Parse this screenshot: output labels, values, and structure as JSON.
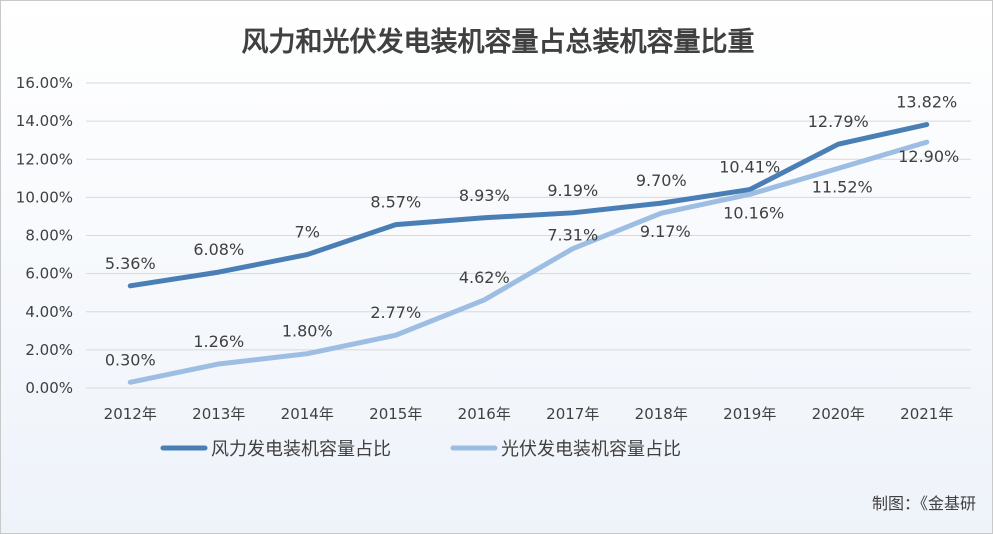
{
  "chart_data": {
    "type": "line",
    "title": "风力和光伏发电装机容量占总装机容量比重",
    "categories": [
      "2012年",
      "2013年",
      "2014年",
      "2015年",
      "2016年",
      "2017年",
      "2018年",
      "2019年",
      "2020年",
      "2021年"
    ],
    "ylim": [
      0,
      16
    ],
    "yticks": [
      "0.00%",
      "2.00%",
      "4.00%",
      "6.00%",
      "8.00%",
      "10.00%",
      "12.00%",
      "14.00%",
      "16.00%"
    ],
    "grid": true,
    "legend_position": "bottom",
    "series": [
      {
        "name": "风力发电装机容量占比",
        "color": "#4a7fb5",
        "values": [
          5.36,
          6.08,
          7,
          8.57,
          8.93,
          9.19,
          9.7,
          10.41,
          12.79,
          13.82
        ],
        "labels": [
          "5.36%",
          "6.08%",
          "7%",
          "8.57%",
          "8.93%",
          "9.19%",
          "9.70%",
          "10.41%",
          "12.79%",
          "13.82%"
        ]
      },
      {
        "name": "光伏发电装机容量占比",
        "color": "#9dbde3",
        "values": [
          0.3,
          1.26,
          1.8,
          2.77,
          4.62,
          7.31,
          9.17,
          10.16,
          11.52,
          12.9
        ],
        "labels": [
          "0.30%",
          "1.26%",
          "1.80%",
          "2.77%",
          "4.62%",
          "7.31%",
          "9.17%",
          "10.16%",
          "11.52%",
          "12.90%"
        ]
      }
    ],
    "source": "制图：《金基研"
  }
}
